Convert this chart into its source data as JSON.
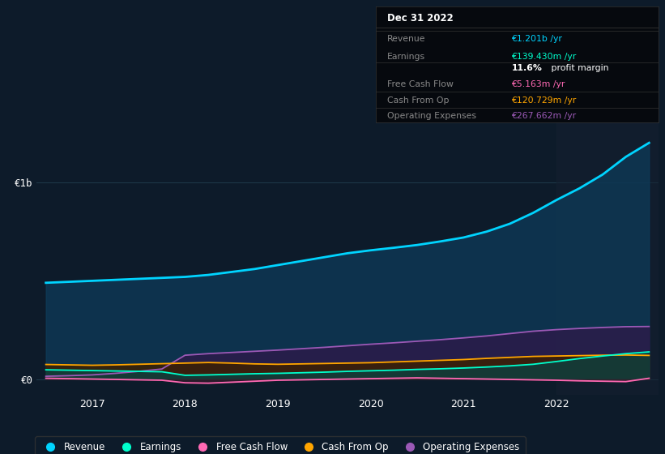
{
  "bg_color": "#0d1b2a",
  "plot_bg_color": "#0d1b2a",
  "grid_color": "#1e3a4a",
  "x_years": [
    2016.5,
    2016.75,
    2017.0,
    2017.25,
    2017.5,
    2017.75,
    2018.0,
    2018.25,
    2018.5,
    2018.75,
    2019.0,
    2019.25,
    2019.5,
    2019.75,
    2020.0,
    2020.25,
    2020.5,
    2020.75,
    2021.0,
    2021.25,
    2021.5,
    2021.75,
    2022.0,
    2022.25,
    2022.5,
    2022.75,
    2023.0
  ],
  "revenue": [
    490,
    495,
    500,
    505,
    510,
    515,
    520,
    530,
    545,
    560,
    580,
    600,
    620,
    640,
    655,
    668,
    682,
    700,
    720,
    750,
    790,
    845,
    910,
    970,
    1040,
    1130,
    1201
  ],
  "earnings": [
    48,
    46,
    44,
    42,
    40,
    38,
    20,
    22,
    25,
    28,
    30,
    33,
    36,
    40,
    43,
    46,
    50,
    53,
    57,
    62,
    68,
    76,
    90,
    105,
    118,
    130,
    139
  ],
  "free_cash_flow": [
    5,
    3,
    1,
    -1,
    -3,
    -5,
    -18,
    -20,
    -15,
    -10,
    -5,
    -3,
    -1,
    1,
    3,
    5,
    7,
    5,
    3,
    1,
    -1,
    -3,
    -5,
    -8,
    -10,
    -12,
    5
  ],
  "cash_from_op": [
    75,
    73,
    71,
    73,
    76,
    79,
    82,
    85,
    82,
    78,
    76,
    78,
    80,
    82,
    84,
    88,
    92,
    96,
    100,
    106,
    111,
    116,
    118,
    120,
    122,
    123,
    121
  ],
  "operating_expenses": [
    15,
    18,
    22,
    30,
    40,
    52,
    122,
    130,
    136,
    142,
    148,
    155,
    162,
    170,
    178,
    185,
    193,
    201,
    210,
    220,
    232,
    244,
    252,
    258,
    263,
    267,
    268
  ],
  "revenue_color": "#00d4ff",
  "earnings_color": "#00ffcc",
  "fcf_color": "#ff69b4",
  "cashfromop_color": "#ffa500",
  "opex_color": "#9b59b6",
  "revenue_fill": "#0d3d5c",
  "earnings_fill": "#0d4040",
  "fcf_fill": "#3d1a2a",
  "cashfromop_fill": "#3d2000",
  "opex_fill": "#2d1a4a",
  "ylim_min": -80,
  "ylim_max": 1350,
  "y_tick_0": 0,
  "y_tick_1b": 1000,
  "x_tick_years": [
    2017,
    2018,
    2019,
    2020,
    2021,
    2022
  ],
  "x_min": 2016.4,
  "x_max": 2023.1,
  "highlight_start": 2022.0,
  "highlight_color": "#152030",
  "info_box_title": "Dec 31 2022",
  "info_rows": [
    {
      "label": "Revenue",
      "value": "€1.201b /yr",
      "value_color": "#00d4ff"
    },
    {
      "label": "Earnings",
      "value": "€139.430m /yr",
      "value_color": "#00ffcc"
    },
    {
      "label": "",
      "value_bold": "11.6%",
      "value_plain": " profit margin",
      "value_color": "#ffffff"
    },
    {
      "label": "Free Cash Flow",
      "value": "€5.163m /yr",
      "value_color": "#ff69b4"
    },
    {
      "label": "Cash From Op",
      "value": "€120.729m /yr",
      "value_color": "#ffa500"
    },
    {
      "label": "Operating Expenses",
      "value": "€267.662m /yr",
      "value_color": "#9b59b6"
    }
  ],
  "legend_items": [
    {
      "label": "Revenue",
      "color": "#00d4ff"
    },
    {
      "label": "Earnings",
      "color": "#00ffcc"
    },
    {
      "label": "Free Cash Flow",
      "color": "#ff69b4"
    },
    {
      "label": "Cash From Op",
      "color": "#ffa500"
    },
    {
      "label": "Operating Expenses",
      "color": "#9b59b6"
    }
  ]
}
